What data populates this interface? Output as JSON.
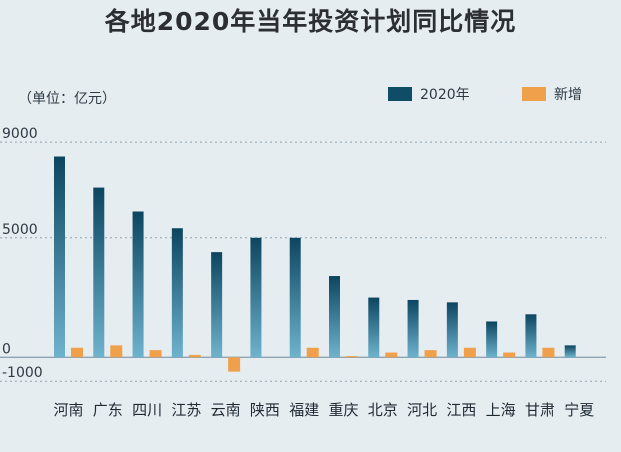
{
  "title": "各地2020年当年投资计划同比情况",
  "unit_label": "（单位：亿元）",
  "colors": {
    "plan": "#0f4d66",
    "plan_light": "#5fa7c3",
    "new": "#f0a04a",
    "grid": "#8fa3b1"
  },
  "chart_data": {
    "type": "bar",
    "categories": [
      "河南",
      "广东",
      "四川",
      "江苏",
      "云南",
      "陕西",
      "福建",
      "重庆",
      "北京",
      "河北",
      "江西",
      "上海",
      "甘肃",
      "宁夏"
    ],
    "series": [
      {
        "name": "2020年",
        "values": [
          8400,
          7100,
          6100,
          5400,
          4400,
          5000,
          5000,
          3400,
          2500,
          2400,
          2300,
          1500,
          1800,
          500
        ]
      },
      {
        "name": "新增",
        "values": [
          400,
          500,
          300,
          100,
          -600,
          0,
          400,
          50,
          200,
          300,
          400,
          200,
          400,
          0
        ]
      }
    ],
    "yticks": [
      9000,
      5000,
      0,
      -1000
    ],
    "ylim": [
      -1200,
      9300
    ],
    "grid": true,
    "legend": "top-right"
  }
}
